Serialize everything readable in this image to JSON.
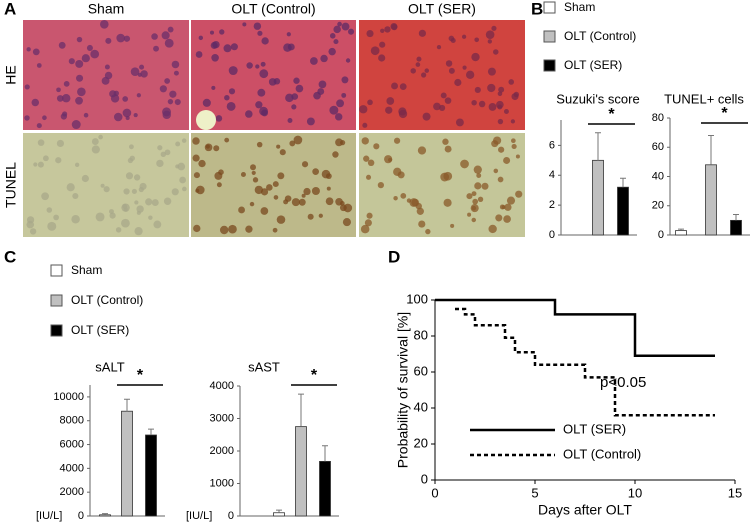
{
  "panel_labels": [
    "A",
    "B",
    "C",
    "D"
  ],
  "micrographs": {
    "columns": [
      "Sham",
      "OLT (Control)",
      "OLT (SER)"
    ],
    "rows": [
      "HE",
      "TUNEL"
    ]
  },
  "legends": [
    [
      {
        "name": "Sham",
        "color": "#ffffff"
      },
      {
        "name": "OLT (Control)",
        "color": "#c0c0c0"
      },
      {
        "name": "OLT (SER)",
        "color": "#000000"
      }
    ],
    [
      {
        "name": "Sham",
        "color": "#ffffff"
      },
      {
        "name": "OLT (Control)",
        "color": "#c0c0c0"
      },
      {
        "name": "OLT (SER)",
        "color": "#000000"
      }
    ]
  ],
  "chart_data": [
    {
      "type": "bar",
      "title": "Suzuki's score",
      "values": [
        0,
        5,
        3.2
      ],
      "errors": [
        null,
        1.85,
        0.6
      ],
      "colors": [
        "#ffffff",
        "#c0c0c0",
        "#000000"
      ],
      "ylim": [
        0,
        7.7
      ],
      "yticks": [
        0,
        2,
        4,
        6
      ],
      "annotation": "*"
    },
    {
      "type": "bar",
      "title": "TUNEL+ cells",
      "values": [
        3,
        48,
        10
      ],
      "errors": [
        1,
        20,
        4
      ],
      "colors": [
        "#ffffff",
        "#c0c0c0",
        "#000000"
      ],
      "ylim": [
        0,
        80
      ],
      "yticks": [
        0,
        20,
        40,
        60,
        80
      ],
      "annotation": "*"
    },
    {
      "type": "bar",
      "title": "sALT",
      "ylabel": "[IU/L]",
      "values": [
        100,
        8800,
        6800
      ],
      "errors": [
        100,
        1000,
        500
      ],
      "colors": [
        "#ffffff",
        "#c0c0c0",
        "#000000"
      ],
      "ylim": [
        0,
        11000
      ],
      "yticks": [
        0,
        2000,
        4000,
        6000,
        8000,
        10000
      ],
      "annotation": "*"
    },
    {
      "type": "bar",
      "title": "sAST",
      "ylabel": "[IU/L]",
      "values": [
        100,
        2750,
        1680
      ],
      "errors": [
        80,
        1000,
        480
      ],
      "colors": [
        "#ffffff",
        "#c0c0c0",
        "#000000"
      ],
      "ylim": [
        0,
        4000
      ],
      "yticks": [
        0,
        1000,
        2000,
        3000,
        4000
      ],
      "annotation": "*"
    },
    {
      "type": "line",
      "xlabel": "Days after OLT",
      "ylabel": "Probability of survival [%]",
      "xlim": [
        0,
        15
      ],
      "xticks": [
        0,
        5,
        10,
        15
      ],
      "ylim": [
        0,
        100
      ],
      "yticks": [
        0,
        20,
        40,
        60,
        80,
        100
      ],
      "annotation": "p<0.05",
      "series": [
        {
          "name": "OLT (SER)",
          "color": "#000000",
          "dash": "solid",
          "x": [
            0,
            6,
            6,
            10,
            10,
            14
          ],
          "values": [
            100,
            100,
            92,
            92,
            69,
            69
          ]
        },
        {
          "name": "OLT (Control)",
          "color": "#000000",
          "dash": "dotted",
          "x": [
            1,
            1.5,
            1.5,
            2,
            2,
            3.5,
            3.5,
            4,
            4,
            5,
            5,
            7.5,
            7.5,
            9,
            9,
            14
          ],
          "values": [
            95,
            95,
            92,
            92,
            86,
            86,
            79,
            79,
            71,
            71,
            64,
            64,
            57,
            57,
            36,
            36
          ]
        }
      ]
    }
  ]
}
